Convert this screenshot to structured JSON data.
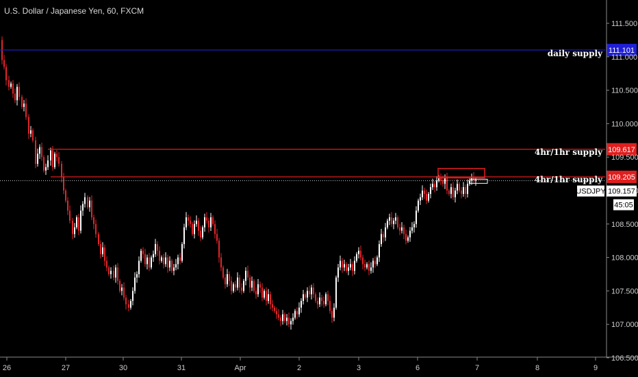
{
  "title": "U.S. Dollar / Japanese Yen, 60, FXCM",
  "chart_data": {
    "type": "candlestick",
    "symbol": "USDJPY",
    "timeframe": "60",
    "source": "FXCM",
    "y_ticks": [
      "111.500",
      "111.000",
      "110.500",
      "110.000",
      "109.500",
      "109.000",
      "108.500",
      "108.000",
      "107.500",
      "107.000",
      "106.500"
    ],
    "ylim": [
      106.5,
      111.7
    ],
    "x_ticks": [
      "26",
      "27",
      "30",
      "31",
      "Apr",
      "2",
      "3",
      "6",
      "7",
      "8",
      "9"
    ],
    "levels": [
      {
        "name": "daily supply",
        "price": 111.101,
        "price_label": "111.101",
        "color": "#1f1fd6"
      },
      {
        "name": "4hr/1hr supply",
        "price": 109.617,
        "price_label": "109.617",
        "color": "#e01e1e"
      },
      {
        "name": "4hr/1hr supply",
        "price": 109.205,
        "price_label": "109.205",
        "color": "#e01e1e"
      }
    ],
    "current_price": {
      "symbol": "USDJPY",
      "price": "109.157",
      "countdown": "45:05"
    },
    "zone_box": {
      "from_price": 109.33,
      "to_price": 109.19,
      "color": "#e01e1e"
    },
    "path": [
      [
        0,
        111.25
      ],
      [
        3,
        110.95
      ],
      [
        6,
        110.85
      ],
      [
        9,
        110.65
      ],
      [
        13,
        110.55
      ],
      [
        16,
        110.6
      ],
      [
        19,
        110.45
      ],
      [
        22,
        110.35
      ],
      [
        25,
        110.55
      ],
      [
        28,
        110.4
      ],
      [
        32,
        110.25
      ],
      [
        35,
        110.3
      ],
      [
        38,
        110.1
      ],
      [
        42,
        109.85
      ],
      [
        45,
        109.9
      ],
      [
        48,
        109.75
      ],
      [
        52,
        109.4
      ],
      [
        55,
        109.55
      ],
      [
        58,
        109.65
      ],
      [
        61,
        109.5
      ],
      [
        64,
        109.3
      ],
      [
        67,
        109.35
      ],
      [
        70,
        109.45
      ],
      [
        74,
        109.6
      ],
      [
        77,
        109.35
      ],
      [
        80,
        109.55
      ],
      [
        83,
        109.5
      ],
      [
        86,
        109.4
      ],
      [
        90,
        109.2
      ],
      [
        93,
        109.0
      ],
      [
        96,
        108.85
      ],
      [
        99,
        108.7
      ],
      [
        102,
        108.55
      ],
      [
        106,
        108.35
      ],
      [
        109,
        108.45
      ],
      [
        112,
        108.6
      ],
      [
        115,
        108.4
      ],
      [
        118,
        108.7
      ],
      [
        121,
        108.8
      ],
      [
        124,
        108.9
      ],
      [
        128,
        108.75
      ],
      [
        131,
        108.85
      ],
      [
        134,
        108.6
      ],
      [
        137,
        108.5
      ],
      [
        140,
        108.35
      ],
      [
        144,
        108.2
      ],
      [
        147,
        108.05
      ],
      [
        150,
        108.15
      ],
      [
        153,
        107.95
      ],
      [
        156,
        107.85
      ],
      [
        159,
        107.75
      ],
      [
        162,
        107.8
      ],
      [
        166,
        107.7
      ],
      [
        169,
        107.85
      ],
      [
        172,
        107.65
      ],
      [
        175,
        107.5
      ],
      [
        178,
        107.55
      ],
      [
        181,
        107.4
      ],
      [
        184,
        107.3
      ],
      [
        188,
        107.25
      ],
      [
        191,
        107.35
      ],
      [
        194,
        107.5
      ],
      [
        197,
        107.7
      ],
      [
        200,
        107.75
      ],
      [
        203,
        107.95
      ],
      [
        206,
        108.1
      ],
      [
        209,
        108.05
      ],
      [
        212,
        107.9
      ],
      [
        215,
        108.0
      ],
      [
        218,
        107.85
      ],
      [
        221,
        108.0
      ],
      [
        224,
        108.05
      ],
      [
        227,
        108.2
      ],
      [
        230,
        108.1
      ],
      [
        233,
        107.95
      ],
      [
        236,
        108.0
      ],
      [
        239,
        107.9
      ],
      [
        242,
        108.0
      ],
      [
        245,
        107.85
      ],
      [
        248,
        107.95
      ],
      [
        251,
        107.8
      ],
      [
        254,
        107.85
      ],
      [
        257,
        107.9
      ],
      [
        260,
        108.0
      ],
      [
        263,
        107.95
      ],
      [
        266,
        108.2
      ],
      [
        269,
        108.45
      ],
      [
        272,
        108.6
      ],
      [
        275,
        108.55
      ],
      [
        278,
        108.5
      ],
      [
        281,
        108.35
      ],
      [
        284,
        108.5
      ],
      [
        287,
        108.55
      ],
      [
        290,
        108.4
      ],
      [
        293,
        108.3
      ],
      [
        296,
        108.45
      ],
      [
        299,
        108.6
      ],
      [
        302,
        108.55
      ],
      [
        305,
        108.45
      ],
      [
        308,
        108.6
      ],
      [
        311,
        108.5
      ],
      [
        314,
        108.35
      ],
      [
        317,
        108.25
      ],
      [
        320,
        108.0
      ],
      [
        323,
        107.85
      ],
      [
        326,
        107.7
      ],
      [
        329,
        107.6
      ],
      [
        332,
        107.75
      ],
      [
        335,
        107.65
      ],
      [
        338,
        107.5
      ],
      [
        341,
        107.6
      ],
      [
        344,
        107.55
      ],
      [
        347,
        107.7
      ],
      [
        350,
        107.55
      ],
      [
        353,
        107.5
      ],
      [
        356,
        107.65
      ],
      [
        359,
        107.8
      ],
      [
        362,
        107.7
      ],
      [
        365,
        107.55
      ],
      [
        368,
        107.65
      ],
      [
        371,
        107.5
      ],
      [
        374,
        107.45
      ],
      [
        377,
        107.6
      ],
      [
        380,
        107.55
      ],
      [
        383,
        107.4
      ],
      [
        386,
        107.5
      ],
      [
        389,
        107.35
      ],
      [
        392,
        107.45
      ],
      [
        395,
        107.3
      ],
      [
        398,
        107.25
      ],
      [
        401,
        107.2
      ],
      [
        404,
        107.15
      ],
      [
        407,
        107.1
      ],
      [
        410,
        107.05
      ],
      [
        413,
        107.15
      ],
      [
        416,
        107.05
      ],
      [
        419,
        107.1
      ],
      [
        422,
        107.0
      ],
      [
        425,
        107.05
      ],
      [
        428,
        107.1
      ],
      [
        431,
        107.2
      ],
      [
        434,
        107.15
      ],
      [
        437,
        107.25
      ],
      [
        440,
        107.35
      ],
      [
        443,
        107.45
      ],
      [
        446,
        107.4
      ],
      [
        449,
        107.5
      ],
      [
        452,
        107.45
      ],
      [
        455,
        107.55
      ],
      [
        458,
        107.45
      ],
      [
        461,
        107.35
      ],
      [
        464,
        107.3
      ],
      [
        467,
        107.4
      ],
      [
        470,
        107.35
      ],
      [
        473,
        107.3
      ],
      [
        476,
        107.45
      ],
      [
        479,
        107.35
      ],
      [
        482,
        107.2
      ],
      [
        485,
        107.1
      ],
      [
        488,
        107.25
      ],
      [
        491,
        107.7
      ],
      [
        494,
        107.85
      ],
      [
        497,
        107.95
      ],
      [
        500,
        107.85
      ],
      [
        503,
        107.9
      ],
      [
        506,
        107.8
      ],
      [
        509,
        107.85
      ],
      [
        512,
        107.9
      ],
      [
        515,
        107.8
      ],
      [
        518,
        107.95
      ],
      [
        521,
        108.05
      ],
      [
        524,
        108.1
      ],
      [
        527,
        108.0
      ],
      [
        530,
        107.9
      ],
      [
        533,
        107.85
      ],
      [
        536,
        107.9
      ],
      [
        539,
        107.8
      ],
      [
        542,
        107.85
      ],
      [
        545,
        107.95
      ],
      [
        548,
        107.9
      ],
      [
        551,
        108.0
      ],
      [
        554,
        108.2
      ],
      [
        557,
        108.35
      ],
      [
        560,
        108.3
      ],
      [
        563,
        108.45
      ],
      [
        566,
        108.55
      ],
      [
        569,
        108.6
      ],
      [
        572,
        108.5
      ],
      [
        575,
        108.55
      ],
      [
        578,
        108.6
      ],
      [
        581,
        108.45
      ],
      [
        584,
        108.4
      ],
      [
        587,
        108.45
      ],
      [
        590,
        108.35
      ],
      [
        593,
        108.25
      ],
      [
        596,
        108.3
      ],
      [
        599,
        108.4
      ],
      [
        602,
        108.45
      ],
      [
        605,
        108.5
      ],
      [
        608,
        108.7
      ],
      [
        611,
        108.85
      ],
      [
        614,
        108.9
      ],
      [
        617,
        109.0
      ],
      [
        620,
        108.95
      ],
      [
        623,
        108.85
      ],
      [
        626,
        108.95
      ],
      [
        629,
        109.05
      ],
      [
        632,
        109.1
      ],
      [
        635,
        109.05
      ],
      [
        638,
        109.15
      ],
      [
        641,
        109.2
      ],
      [
        644,
        109.15
      ],
      [
        647,
        109.1
      ],
      [
        650,
        109.2
      ],
      [
        653,
        109.0
      ],
      [
        656,
        108.95
      ],
      [
        659,
        109.05
      ],
      [
        662,
        108.9
      ],
      [
        665,
        109.0
      ],
      [
        668,
        109.1
      ],
      [
        671,
        109.0
      ],
      [
        674,
        108.95
      ],
      [
        677,
        109.05
      ],
      [
        680,
        108.95
      ],
      [
        683,
        109.1
      ],
      [
        686,
        109.15
      ],
      [
        689,
        109.2
      ],
      [
        692,
        109.15
      ],
      [
        695,
        109.16
      ]
    ]
  }
}
